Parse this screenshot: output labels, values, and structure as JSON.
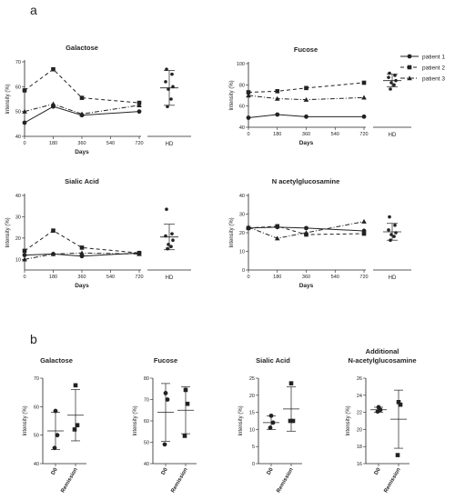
{
  "panel_a_label": "a",
  "panel_b_label": "b",
  "legend": [
    {
      "label": "patient 1",
      "style": "solid",
      "marker": "circle"
    },
    {
      "label": "patient 2",
      "style": "dashed",
      "marker": "square"
    },
    {
      "label": "patient 3",
      "style": "dashdot",
      "marker": "triangle"
    }
  ],
  "chart_data": [
    {
      "id": "a-galactose",
      "type": "line",
      "title": "Galactose",
      "xlabel": "Days",
      "ylabel": "Intensity (%)",
      "x": [
        0,
        180,
        360,
        720
      ],
      "xticks": [
        "0",
        "180",
        "360",
        "540",
        "720"
      ],
      "ylim": [
        40,
        70
      ],
      "yticks": [
        "40",
        "50",
        "60",
        "70"
      ],
      "series": [
        {
          "name": "patient 1",
          "values": [
            45.5,
            52,
            48.5,
            50
          ]
        },
        {
          "name": "patient 2",
          "values": [
            58.5,
            67,
            55.5,
            53.5
          ]
        },
        {
          "name": "patient 3",
          "values": [
            50,
            53,
            49,
            52.5
          ]
        }
      ],
      "hd": {
        "label": "HD",
        "points": [
          67,
          65,
          62,
          60,
          59,
          55,
          52
        ],
        "mean": 59.5,
        "sd": 7
      }
    },
    {
      "id": "a-fucose",
      "type": "line",
      "title": "Fucose",
      "xlabel": "Days",
      "ylabel": "Intensity (%)",
      "x": [
        0,
        180,
        360,
        720
      ],
      "xticks": [
        "0",
        "180",
        "360",
        "540",
        "720"
      ],
      "ylim": [
        40,
        100
      ],
      "yticks": [
        "40",
        "60",
        "80",
        "100"
      ],
      "series": [
        {
          "name": "patient 1",
          "values": [
            49,
            52,
            50,
            50
          ]
        },
        {
          "name": "patient 2",
          "values": [
            73,
            74,
            77,
            82
          ]
        },
        {
          "name": "patient 3",
          "values": [
            70,
            67,
            66,
            68
          ]
        }
      ],
      "hd": {
        "label": "HD",
        "points": [
          91,
          89,
          87,
          84,
          82,
          80,
          76
        ],
        "mean": 84,
        "sd": 6
      }
    },
    {
      "id": "a-sialic",
      "type": "line",
      "title": "Sialic Acid",
      "xlabel": "Days",
      "ylabel": "Intensity (%)",
      "x": [
        0,
        180,
        360,
        720
      ],
      "xticks": [
        "0",
        "180",
        "360",
        "540",
        "720"
      ],
      "ylim": [
        5,
        40
      ],
      "yticks": [
        "10",
        "20",
        "30",
        "40"
      ],
      "series": [
        {
          "name": "patient 1",
          "values": [
            12,
            12.5,
            11.5,
            13
          ]
        },
        {
          "name": "patient 2",
          "values": [
            14,
            23.5,
            15.5,
            13
          ]
        },
        {
          "name": "patient 3",
          "values": [
            10,
            12.5,
            13,
            12.5
          ]
        }
      ],
      "hd": {
        "label": "HD",
        "points": [
          33.5,
          22,
          21,
          19,
          17,
          16,
          15
        ],
        "mean": 20.5,
        "sd": 6
      }
    },
    {
      "id": "a-nacetyl",
      "type": "line",
      "title": "N acetylglucosamine",
      "xlabel": "Days",
      "ylabel": "Intensity (%)",
      "x": [
        0,
        180,
        360,
        720
      ],
      "xticks": [
        "0",
        "180",
        "360",
        "540",
        "720"
      ],
      "ylim": [
        0,
        40
      ],
      "yticks": [
        "0",
        "10",
        "20",
        "30",
        "40"
      ],
      "series": [
        {
          "name": "patient 1",
          "values": [
            22.5,
            23,
            22.5,
            21
          ]
        },
        {
          "name": "patient 2",
          "values": [
            22.5,
            23.5,
            19,
            19.5
          ]
        },
        {
          "name": "patient 3",
          "values": [
            23,
            17,
            20,
            26
          ]
        }
      ],
      "hd": {
        "label": "HD",
        "points": [
          28.5,
          24,
          21.5,
          20,
          19,
          18,
          16
        ],
        "mean": 20.5,
        "sd": 4.5
      }
    },
    {
      "id": "b-galactose",
      "type": "scatter",
      "title": "Galactose",
      "ylabel": "Intensity (%)",
      "categories": [
        "D0",
        "Remission"
      ],
      "ylim": [
        40,
        70
      ],
      "yticks": [
        "40",
        "50",
        "60",
        "70"
      ],
      "groups": [
        {
          "name": "D0",
          "points": [
            58.5,
            50,
            45.5
          ],
          "mean": 51.5,
          "sd": 6.5
        },
        {
          "name": "Remission",
          "points": [
            67.5,
            53.5,
            52
          ],
          "mean": 57,
          "sd": 9
        }
      ]
    },
    {
      "id": "b-fucose",
      "type": "scatter",
      "title": "Fucose",
      "ylabel": "Intensity (%)",
      "categories": [
        "D0",
        "Remission"
      ],
      "ylim": [
        40,
        80
      ],
      "yticks": [
        "40",
        "50",
        "60",
        "70",
        "80"
      ],
      "groups": [
        {
          "name": "D0",
          "points": [
            73,
            70,
            49
          ],
          "mean": 64,
          "sd": 13.5
        },
        {
          "name": "Remission",
          "points": [
            74.5,
            68,
            53
          ],
          "mean": 65,
          "sd": 11
        }
      ]
    },
    {
      "id": "b-sialic",
      "type": "scatter",
      "title": "Sialic Acid",
      "ylabel": "Intensity (%)",
      "categories": [
        "D0",
        "Remission"
      ],
      "ylim": [
        0,
        25
      ],
      "yticks": [
        "0",
        "5",
        "10",
        "15",
        "20",
        "25"
      ],
      "groups": [
        {
          "name": "D0",
          "points": [
            14,
            12,
            10.5
          ],
          "mean": 12,
          "sd": 2
        },
        {
          "name": "Remission",
          "points": [
            23.5,
            12.5,
            12.5
          ],
          "mean": 16,
          "sd": 6.5
        }
      ]
    },
    {
      "id": "b-additional",
      "type": "scatter",
      "title": "Additional",
      "title2": "N-acetylglucosamine",
      "ylabel": "Intensity (%)",
      "categories": [
        "D0",
        "Remission"
      ],
      "ylim": [
        16,
        26
      ],
      "yticks": [
        "16",
        "18",
        "20",
        "22",
        "24",
        "26"
      ],
      "groups": [
        {
          "name": "D0",
          "points": [
            22.6,
            22.3,
            22.1
          ],
          "mean": 22.3,
          "sd": 0.3
        },
        {
          "name": "Remission",
          "points": [
            23.2,
            22.9,
            17
          ],
          "mean": 21.2,
          "sd": 3.4
        }
      ]
    }
  ]
}
